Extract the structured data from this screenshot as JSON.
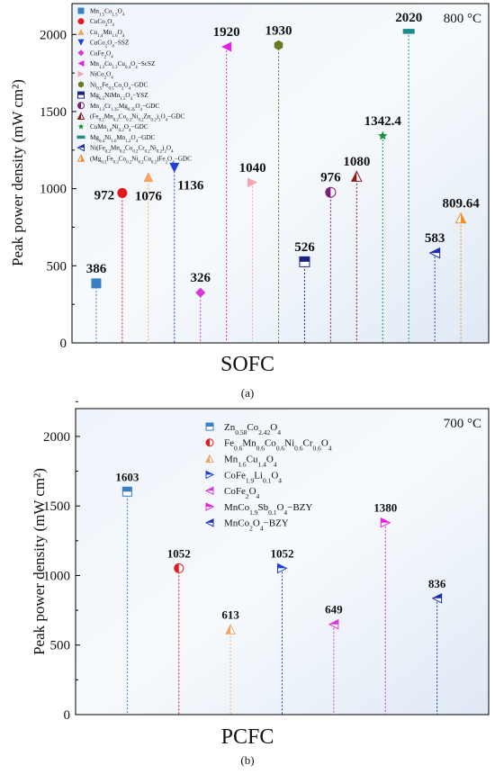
{
  "chart_data": [
    {
      "type": "scatter",
      "panel_label": "(a)",
      "xlabel": "SOFC",
      "ylabel": "Peak power density (mW cm²)",
      "annotation": "800 °C",
      "ylim": [
        0,
        2200
      ],
      "yticks": [
        0,
        500,
        1000,
        1500,
        2000
      ],
      "legend_position": "top-left",
      "series": [
        {
          "name": "Mn1.5Co1.5O4",
          "value": 386,
          "label": "386",
          "color": "#3a7fc1",
          "marker": "square"
        },
        {
          "name": "CuCo2O4",
          "value": 972,
          "label": "972",
          "color": "#e31a1c",
          "marker": "circle"
        },
        {
          "name": "Cu1.4Mn1.6O4",
          "value": 1076,
          "label": "1076",
          "color": "#f4a460",
          "marker": "triangle-up"
        },
        {
          "name": "CuCo2O4−SSZ",
          "value": 1136,
          "label": "1136",
          "color": "#1f3fd6",
          "marker": "triangle-down"
        },
        {
          "name": "CuFe2O4",
          "value": 326,
          "label": "326",
          "color": "#d63ad6",
          "marker": "diamond"
        },
        {
          "name": "Mn1.3Co1.3Cu0.4O4−ScSZ",
          "value": 1920,
          "label": "1920",
          "color": "#e61ee6",
          "marker": "triangle-left"
        },
        {
          "name": "NiCo2O4",
          "value": 1040,
          "label": "1040",
          "color": "#f4a6b0",
          "marker": "triangle-right"
        },
        {
          "name": "Ni0.5Fe0.5Co2O4−GDC",
          "value": 1930,
          "label": "1930",
          "color": "#6b7a1f",
          "marker": "hexagon"
        },
        {
          "name": "Mg0.5NiMn1.5O4−YSZ",
          "value": 526,
          "label": "526",
          "color": "#1a237e",
          "marker": "half-square"
        },
        {
          "name": "Mn1.3Cr1.35Mg0.35O4−GDC",
          "value": 976,
          "label": "976",
          "color": "#7b1f7b",
          "marker": "half-circle"
        },
        {
          "name": "(Fe0.2Mn0.2Co0.2Ni0.2Zn0.2)3O4−GDC",
          "value": 1080,
          "label": "1080",
          "color": "#8b1a1a",
          "marker": "half-triangle"
        },
        {
          "name": "CuMn1.8Ni0.2O4−GDC",
          "value": 1342.4,
          "label": "1342.4",
          "color": "#1f8f3f",
          "marker": "star"
        },
        {
          "name": "Mg0.4Ni1.6Mn1.2O4−GDC",
          "value": 2020,
          "label": "2020",
          "color": "#1f8a8a",
          "marker": "half-bar"
        },
        {
          "name": "Ni(Fe0.2Mn0.2Co0.2Cr0.2Ni0.2)2O4",
          "value": 583,
          "label": "583",
          "color": "#1f2fb0",
          "marker": "half-triangle-left"
        },
        {
          "name": "(Mg0.2Fe0.2Co0.2Ni0.2Cu0.2)Fe2O4−GDC",
          "value": 809.64,
          "label": "809.64",
          "color": "#f08c2a",
          "marker": "half-triangle-up"
        }
      ]
    },
    {
      "type": "scatter",
      "panel_label": "(b)",
      "xlabel": "PCFC",
      "ylabel": "Peak power density (mW cm²)",
      "annotation": "700 °C",
      "ylim": [
        0,
        2200
      ],
      "yticks": [
        0,
        500,
        1000,
        1500,
        2000
      ],
      "legend_position": "top-center",
      "series": [
        {
          "name": "Zn0.58Co2.42O4",
          "value": 1603,
          "label": "1603",
          "color": "#3a7fc1",
          "marker": "half-square"
        },
        {
          "name": "Fe0.6Mn0.6Co0.6Ni0.6Cr0.6O4",
          "value": 1052,
          "label": "1052",
          "color": "#e31a1c",
          "marker": "half-circle"
        },
        {
          "name": "Mn1.6Cu1.4O4",
          "value": 613,
          "label": "613",
          "color": "#f4a460",
          "marker": "half-triangle"
        },
        {
          "name": "CoFe1.9Li0.1O4",
          "value": 1052,
          "label": "1052",
          "color": "#1f3fd6",
          "marker": "half-triangle-right"
        },
        {
          "name": "CoFe2O4",
          "value": 649,
          "label": "649",
          "color": "#d63ad6",
          "marker": "half-triangle-left"
        },
        {
          "name": "MnCo1.9Sb0.1O4−BZY",
          "value": 1380,
          "label": "1380",
          "color": "#e61ee6",
          "marker": "half-triangle-right"
        },
        {
          "name": "MnCo2O4−BZY",
          "value": 836,
          "label": "836",
          "color": "#1f2fb0",
          "marker": "half-triangle-left"
        }
      ]
    }
  ]
}
